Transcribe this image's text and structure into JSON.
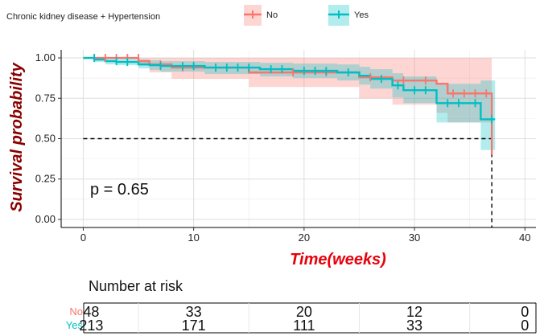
{
  "chart_data": {
    "type": "line",
    "legend": {
      "title": "Chronic kidney disease + Hypertension",
      "placement": "top"
    },
    "xlabel": "Time(weeks)",
    "ylabel": "Survival probability",
    "xlim": [
      -2,
      41
    ],
    "ylim": [
      -0.05,
      1.05
    ],
    "x_ticks": [
      0,
      10,
      20,
      30,
      40
    ],
    "y_ticks": [
      0.0,
      0.25,
      0.5,
      0.75,
      1.0
    ],
    "x_tick_labels": [
      "0",
      "10",
      "20",
      "30",
      "40"
    ],
    "y_tick_labels": [
      "0.00",
      "0.25",
      "0.50",
      "0.75",
      "1.00"
    ],
    "grid": true,
    "annotation": "p = 0.65",
    "median_line": {
      "y": 0.5,
      "x": 37
    },
    "series": [
      {
        "name": "No",
        "color": "#F8766D",
        "steps": [
          [
            0,
            1.0
          ],
          [
            5,
            0.98
          ],
          [
            6,
            0.96
          ],
          [
            8,
            0.94
          ],
          [
            15,
            0.91
          ],
          [
            25,
            0.88
          ],
          [
            28,
            0.86
          ],
          [
            32,
            0.84
          ],
          [
            33,
            0.78
          ],
          [
            37,
            0.4
          ]
        ],
        "ci_upper": [
          [
            0,
            1.0
          ],
          [
            5,
            1.0
          ],
          [
            6,
            1.0
          ],
          [
            8,
            1.0
          ],
          [
            15,
            1.0
          ],
          [
            25,
            1.0
          ],
          [
            28,
            1.0
          ],
          [
            32,
            1.0
          ],
          [
            33,
            1.0
          ],
          [
            37,
            1.0
          ]
        ],
        "ci_lower": [
          [
            0,
            1.0
          ],
          [
            5,
            0.95
          ],
          [
            6,
            0.91
          ],
          [
            8,
            0.87
          ],
          [
            15,
            0.82
          ],
          [
            25,
            0.75
          ],
          [
            28,
            0.71
          ],
          [
            32,
            0.66
          ],
          [
            33,
            0.6
          ],
          [
            37,
            0.4
          ]
        ],
        "censors": [
          [
            1,
            1.0
          ],
          [
            2,
            1.0
          ],
          [
            3,
            1.0
          ],
          [
            4,
            1.0
          ],
          [
            5,
            1.0
          ],
          [
            7,
            0.96
          ],
          [
            9,
            0.94
          ],
          [
            12,
            0.94
          ],
          [
            19,
            0.91
          ],
          [
            22,
            0.91
          ],
          [
            26,
            0.88
          ],
          [
            29,
            0.86
          ],
          [
            31,
            0.86
          ],
          [
            33.5,
            0.78
          ],
          [
            34.5,
            0.78
          ],
          [
            35.5,
            0.78
          ],
          [
            36.5,
            0.78
          ]
        ],
        "end_x": 37
      },
      {
        "name": "Yes",
        "color": "#00BFC4",
        "steps": [
          [
            0,
            1.0
          ],
          [
            1,
            0.99
          ],
          [
            2,
            0.98
          ],
          [
            3,
            0.975
          ],
          [
            5,
            0.96
          ],
          [
            6,
            0.955
          ],
          [
            7,
            0.95
          ],
          [
            11,
            0.94
          ],
          [
            16,
            0.93
          ],
          [
            19,
            0.92
          ],
          [
            23,
            0.91
          ],
          [
            25,
            0.89
          ],
          [
            26,
            0.87
          ],
          [
            28,
            0.83
          ],
          [
            29,
            0.8
          ],
          [
            32,
            0.72
          ],
          [
            35,
            0.72
          ],
          [
            36,
            0.62
          ]
        ],
        "ci_upper": [
          [
            0,
            1.0
          ],
          [
            1,
            1.0
          ],
          [
            2,
            1.0
          ],
          [
            3,
            1.0
          ],
          [
            5,
            0.99
          ],
          [
            6,
            0.985
          ],
          [
            7,
            0.98
          ],
          [
            11,
            0.975
          ],
          [
            16,
            0.97
          ],
          [
            19,
            0.965
          ],
          [
            23,
            0.96
          ],
          [
            25,
            0.945
          ],
          [
            26,
            0.93
          ],
          [
            28,
            0.905
          ],
          [
            29,
            0.885
          ],
          [
            32,
            0.84
          ],
          [
            35,
            0.84
          ],
          [
            36,
            0.86
          ]
        ],
        "ci_lower": [
          [
            0,
            1.0
          ],
          [
            1,
            0.975
          ],
          [
            2,
            0.96
          ],
          [
            3,
            0.955
          ],
          [
            5,
            0.935
          ],
          [
            6,
            0.925
          ],
          [
            7,
            0.915
          ],
          [
            11,
            0.9
          ],
          [
            16,
            0.885
          ],
          [
            19,
            0.875
          ],
          [
            23,
            0.86
          ],
          [
            25,
            0.835
          ],
          [
            26,
            0.81
          ],
          [
            28,
            0.755
          ],
          [
            29,
            0.72
          ],
          [
            32,
            0.6
          ],
          [
            35,
            0.6
          ],
          [
            36,
            0.43
          ]
        ],
        "censors": [
          [
            1,
            1.0
          ],
          [
            3,
            0.98
          ],
          [
            4,
            0.975
          ],
          [
            7,
            0.95
          ],
          [
            9,
            0.95
          ],
          [
            10,
            0.95
          ],
          [
            12,
            0.94
          ],
          [
            13,
            0.94
          ],
          [
            14,
            0.94
          ],
          [
            15,
            0.94
          ],
          [
            17,
            0.93
          ],
          [
            18,
            0.93
          ],
          [
            20,
            0.92
          ],
          [
            21,
            0.92
          ],
          [
            22,
            0.92
          ],
          [
            24,
            0.91
          ],
          [
            27,
            0.87
          ],
          [
            28.5,
            0.83
          ],
          [
            30,
            0.8
          ],
          [
            31,
            0.8
          ],
          [
            33,
            0.72
          ],
          [
            34,
            0.72
          ],
          [
            35.5,
            0.72
          ],
          [
            37,
            0.62
          ]
        ],
        "end_x": 37.3
      }
    ],
    "risk_table": {
      "title": "Number at risk",
      "times": [
        0,
        10,
        20,
        30,
        40
      ],
      "rows": [
        {
          "name": "No",
          "color": "#F8766D",
          "values": [
            "48",
            "33",
            "20",
            "12",
            "0"
          ]
        },
        {
          "name": "Yes",
          "color": "#00BFC4",
          "values": [
            "213",
            "171",
            "111",
            "33",
            "0"
          ]
        }
      ]
    }
  }
}
